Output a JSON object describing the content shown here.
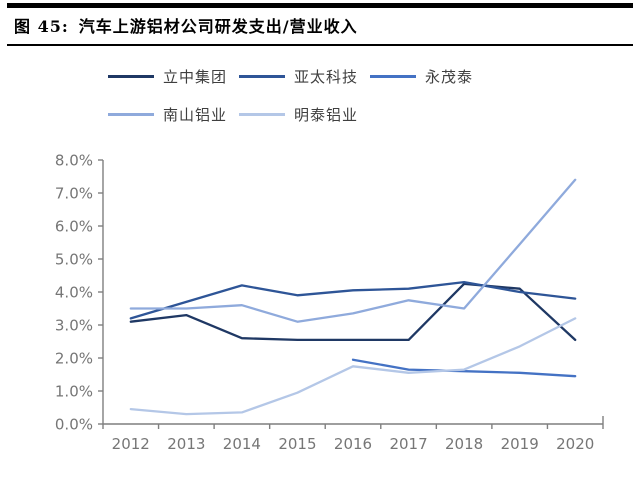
{
  "header": {
    "figure_label": "图 45:",
    "title": "汽车上游铝材公司研发支出/营业收入"
  },
  "chart_data": {
    "type": "line",
    "title": "汽车上游铝材公司研发支出/营业收入",
    "categories": [
      "2012",
      "2013",
      "2014",
      "2015",
      "2016",
      "2017",
      "2018",
      "2019",
      "2020"
    ],
    "series": [
      {
        "name": "立中集团",
        "color": "#1F3864",
        "values": [
          3.1,
          3.3,
          2.6,
          2.55,
          2.55,
          2.55,
          4.25,
          4.1,
          2.55
        ]
      },
      {
        "name": "亚太科技",
        "color": "#2E5597",
        "values": [
          3.2,
          3.7,
          4.2,
          3.9,
          4.05,
          4.1,
          4.3,
          4.0,
          3.8
        ]
      },
      {
        "name": "永茂泰",
        "color": "#4472C4",
        "values": [
          null,
          null,
          null,
          null,
          1.95,
          1.65,
          1.6,
          1.55,
          1.45
        ]
      },
      {
        "name": "南山铝业",
        "color": "#8FAADC",
        "values": [
          3.5,
          3.5,
          3.6,
          3.1,
          3.35,
          3.75,
          3.5,
          5.45,
          7.4
        ]
      },
      {
        "name": "明泰铝业",
        "color": "#B4C7E7",
        "values": [
          0.45,
          0.3,
          0.35,
          0.95,
          1.75,
          1.55,
          1.65,
          2.35,
          3.2
        ]
      }
    ],
    "xlabel": "",
    "ylabel": "",
    "ylim": [
      0,
      8
    ],
    "ytick_labels": [
      "0.0%",
      "1.0%",
      "2.0%",
      "3.0%",
      "4.0%",
      "5.0%",
      "6.0%",
      "7.0%",
      "8.0%"
    ],
    "yformat": "percent",
    "grid": false,
    "legend_position": "top",
    "axis_color": "#7f7f7f",
    "tick_label_color": "#767676"
  }
}
